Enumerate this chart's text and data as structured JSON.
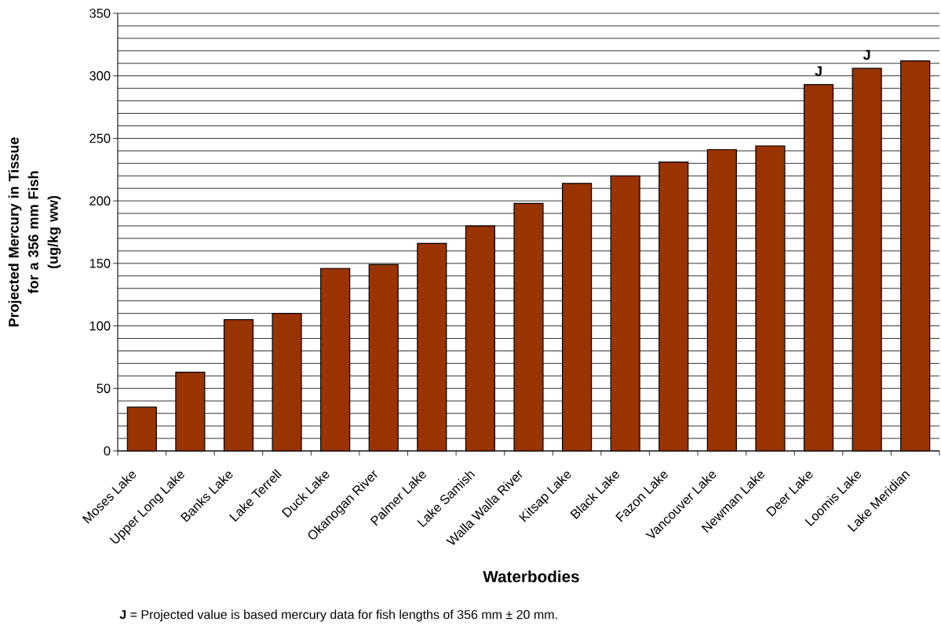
{
  "chart_data": {
    "type": "bar",
    "xlabel": "Waterbodies",
    "ylabel": "Projected Mercury in Tissue for a 356 mm Fish (ug/kg ww)",
    "categories": [
      "Moses Lake",
      "Upper Long Lake",
      "Banks Lake",
      "Lake Terrell",
      "Duck Lake",
      "Okanogan River",
      "Palmer Lake",
      "Lake Samish",
      "Walla Walla River",
      "Kitsap Lake",
      "Black Lake",
      "Fazon Lake",
      "Vancouver Lake",
      "Newman Lake",
      "Deer Lake",
      "Loomis Lake",
      "Lake Meridian"
    ],
    "values": [
      35,
      63,
      105,
      110,
      146,
      149,
      166,
      180,
      198,
      214,
      220,
      231,
      241,
      244,
      293,
      306,
      312
    ],
    "value_labels": [
      null,
      null,
      null,
      null,
      null,
      null,
      null,
      null,
      null,
      null,
      null,
      null,
      null,
      null,
      "J",
      "J",
      null
    ],
    "color": "#993300",
    "ylim": [
      0,
      350
    ],
    "yticks": [
      0,
      {
        "value": 10,
        "label": null
      },
      {
        "value": 20,
        "label": null
      },
      {
        "value": 30,
        "label": null
      },
      {
        "value": 40,
        "label": null
      },
      50,
      {
        "value": 60,
        "label": null
      },
      {
        "value": 70,
        "label": null
      },
      {
        "value": 80,
        "label": null
      },
      {
        "value": 90,
        "label": null
      },
      100,
      {
        "value": 110,
        "label": null
      },
      {
        "value": 120,
        "label": null
      },
      {
        "value": 130,
        "label": null
      },
      {
        "value": 140,
        "label": null
      },
      150,
      {
        "value": 160,
        "label": null
      },
      {
        "value": 170,
        "label": null
      },
      {
        "value": 180,
        "label": null
      },
      {
        "value": 190,
        "label": null
      },
      200,
      {
        "value": 210,
        "label": null
      },
      {
        "value": 220,
        "label": null
      },
      {
        "value": 230,
        "label": null
      },
      {
        "value": 240,
        "label": null
      },
      250,
      {
        "value": 260,
        "label": null
      },
      {
        "value": 270,
        "label": null
      },
      {
        "value": 280,
        "label": null
      },
      {
        "value": 290,
        "label": null
      },
      300,
      {
        "value": 310,
        "label": null
      },
      {
        "value": 320,
        "label": null
      },
      {
        "value": 330,
        "label": null
      },
      {
        "value": 340,
        "label": null
      },
      350
    ],
    "grid": "y",
    "annotations": [
      "**J** = Projected value is based mercury data for fish lengths of 356 mm ± 20 mm."
    ]
  }
}
